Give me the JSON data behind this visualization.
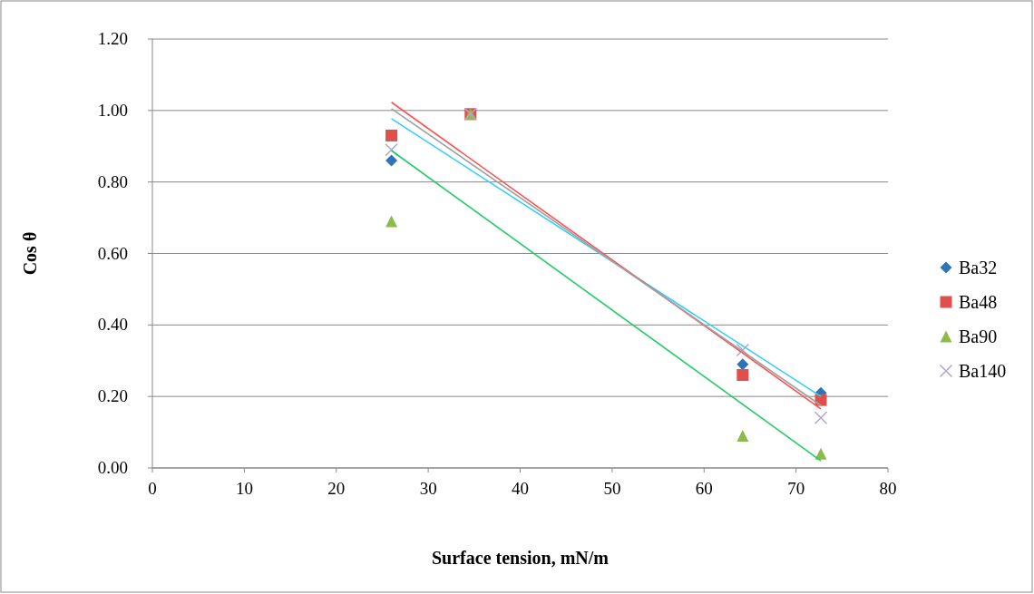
{
  "chart_data": {
    "type": "scatter",
    "xlabel": "Surface tension, mN/m",
    "ylabel": "Cos θ",
    "xlim": [
      0,
      80
    ],
    "xticks": [
      0,
      10,
      20,
      30,
      40,
      50,
      60,
      70,
      80
    ],
    "ylim": [
      0,
      1.2
    ],
    "yticks": [
      {
        "value": 0,
        "label": "0.00"
      },
      {
        "value": 0.2,
        "label": "0.20"
      },
      {
        "value": 0.4,
        "label": "0.40"
      },
      {
        "value": 0.6,
        "label": "0.60"
      },
      {
        "value": 0.8,
        "label": "0.80"
      },
      {
        "value": 1,
        "label": "1.00"
      },
      {
        "value": 1.2,
        "label": "1.20"
      }
    ],
    "grid": "y",
    "legend": "right",
    "x": [
      26,
      34.6,
      64.2,
      72.7
    ],
    "series": [
      {
        "name": "Ba32",
        "color": "#2e75b6",
        "marker": "diamond",
        "values": [
          0.86,
          null,
          0.29,
          0.21
        ]
      },
      {
        "name": "Ba48",
        "color": "#e0504a",
        "marker": "square",
        "values": [
          0.93,
          0.99,
          0.26,
          0.19
        ]
      },
      {
        "name": "Ba90",
        "color": "#8cbb4a",
        "marker": "triangle",
        "values": [
          0.69,
          0.99,
          0.09,
          0.04
        ]
      },
      {
        "name": "Ba140",
        "color": "#b4a4cc",
        "marker": "cross",
        "values": [
          0.89,
          0.99,
          0.33,
          0.14
        ]
      },
      {
        "type": "line",
        "color": "#33ccff",
        "marker": "none",
        "values": [
          0.977,
          null,
          null,
          0.2
        ]
      },
      {
        "type": "line",
        "color": "#ff5050",
        "marker": "none",
        "values": [
          1.023,
          null,
          null,
          0.165
        ]
      },
      {
        "type": "line",
        "color": "#22cc66",
        "marker": "none",
        "values": [
          0.888,
          null,
          null,
          0.02
        ]
      },
      {
        "type": "line",
        "color": "#a0a0a0",
        "marker": "none",
        "values": [
          1.005,
          null,
          null,
          0.175
        ]
      }
    ]
  }
}
